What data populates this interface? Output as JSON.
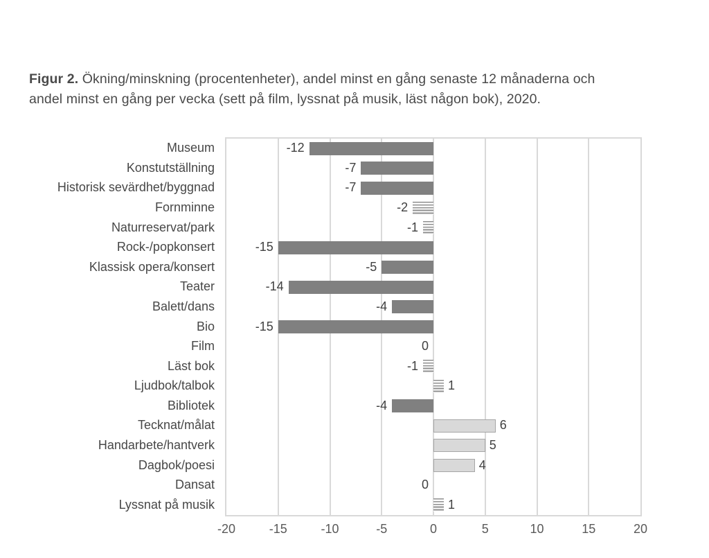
{
  "caption": {
    "bold_prefix": "Figur 2.",
    "line1_rest": " Ökning/minskning (procentenheter), andel minst en gång senaste 12 månaderna och",
    "line2": "andel minst en gång per vecka (sett på film, lyssnat på musik, läst någon bok), 2020."
  },
  "chart_data": {
    "type": "bar",
    "orientation": "horizontal",
    "title": "Figur 2. Ökning/minskning (procentenheter), andel minst en gång senaste 12 månaderna och andel minst en gång per vecka (sett på film, lyssnat på musik, läst någon bok), 2020.",
    "categories": [
      "Museum",
      "Konstutställning",
      "Historisk sevärdhet/byggnad",
      "Fornminne",
      "Naturreservat/park",
      "Rock-/popkonsert",
      "Klassisk opera/konsert",
      "Teater",
      "Balett/dans",
      "Bio",
      "Film",
      "Läst bok",
      "Ljudbok/talbok",
      "Bibliotek",
      "Tecknat/målat",
      "Handarbete/hantverk",
      "Dagbok/poesi",
      "Dansat",
      "Lyssnat på musik"
    ],
    "values": [
      -12,
      -7,
      -7,
      -2,
      -1,
      -15,
      -5,
      -14,
      -4,
      -15,
      0,
      -1,
      1,
      -4,
      6,
      5,
      4,
      0,
      1
    ],
    "data_labels": [
      "-12",
      "-7",
      "-7",
      "-2",
      "-1",
      "-15",
      "-5",
      "-14",
      "-4",
      "-15",
      "0",
      "-1",
      "1",
      "-4",
      "6",
      "5",
      "4",
      "0",
      "1"
    ],
    "bar_styles": [
      "solid",
      "solid",
      "solid",
      "striped",
      "striped",
      "solid",
      "solid",
      "solid",
      "solid",
      "solid",
      "none",
      "striped",
      "striped",
      "solid",
      "light",
      "light",
      "light",
      "none",
      "striped"
    ],
    "xlim": [
      -20,
      20
    ],
    "xticks": [
      -20,
      -15,
      -10,
      -5,
      0,
      5,
      10,
      15,
      20
    ],
    "grid": true,
    "legend": "none",
    "colors": {
      "solid_bar": "#808080",
      "light_bar_fill": "#d9d9d9",
      "light_bar_border": "#a6a6a6",
      "stripe": "#8f8f8f",
      "gridline": "#d9d9d9",
      "category_label": "#474747",
      "value_label": "#404040",
      "tick_label": "#595959",
      "caption_text": "#4a4a4a"
    }
  }
}
